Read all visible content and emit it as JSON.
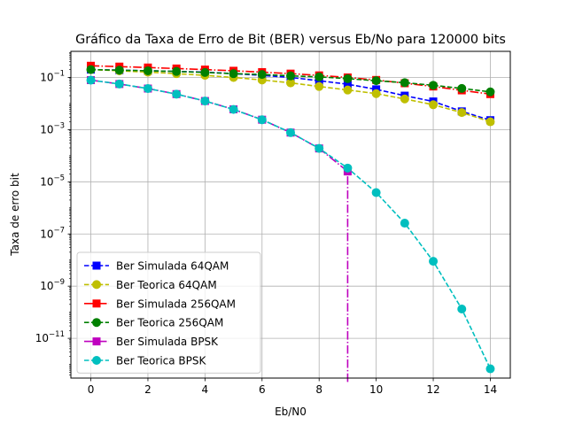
{
  "chart_data": {
    "type": "line",
    "title": "Gráfico da Taxa de Erro de Bit (BER) versus Eb/No para 120000 bits",
    "xlabel": "Eb/N0",
    "ylabel": "Taxa de erro bit",
    "xlim": [
      -0.7,
      14.7
    ],
    "ylim": [
      3e-13,
      1
    ],
    "yscale": "log",
    "grid": true,
    "legend_position": "lower-left",
    "x_ticks": [
      0,
      2,
      4,
      6,
      8,
      10,
      12,
      14
    ],
    "y_ticks": [
      {
        "value": 0.1,
        "base": "10",
        "exp": "−1"
      },
      {
        "value": 0.001,
        "base": "10",
        "exp": "−3"
      },
      {
        "value": 1e-05,
        "base": "10",
        "exp": "−5"
      },
      {
        "value": 1e-07,
        "base": "10",
        "exp": "−7"
      },
      {
        "value": 1e-09,
        "base": "10",
        "exp": "−9"
      },
      {
        "value": 1e-11,
        "base": "10",
        "exp": "−11"
      }
    ],
    "x": [
      0,
      1,
      2,
      3,
      4,
      5,
      6,
      7,
      8,
      9,
      10,
      11,
      12,
      13,
      14
    ],
    "series": [
      {
        "name": "Ber Simulada 64QAM",
        "color": "#0000ff",
        "marker": "square",
        "dash": "dashed",
        "values": [
          0.2,
          0.19,
          0.18,
          0.17,
          0.16,
          0.14,
          0.12,
          0.1,
          0.075,
          0.055,
          0.035,
          0.02,
          0.012,
          0.005,
          0.0023
        ]
      },
      {
        "name": "Ber Teorica 64QAM",
        "color": "#bfbf00",
        "marker": "circle",
        "dash": "dashed",
        "values": [
          0.2,
          0.18,
          0.16,
          0.14,
          0.12,
          0.1,
          0.08,
          0.062,
          0.045,
          0.033,
          0.024,
          0.015,
          0.009,
          0.0045,
          0.002
        ]
      },
      {
        "name": "Ber Simulada 256QAM",
        "color": "#ff0000",
        "marker": "square",
        "dash": "dashdot",
        "values": [
          0.28,
          0.26,
          0.24,
          0.22,
          0.2,
          0.18,
          0.16,
          0.14,
          0.12,
          0.1,
          0.08,
          0.06,
          0.045,
          0.032,
          0.023
        ]
      },
      {
        "name": "Ber Teorica 256QAM",
        "color": "#008000",
        "marker": "circle",
        "dash": "dashed",
        "values": [
          0.2,
          0.19,
          0.18,
          0.17,
          0.155,
          0.14,
          0.13,
          0.115,
          0.105,
          0.09,
          0.075,
          0.063,
          0.05,
          0.038,
          0.028
        ]
      },
      {
        "name": "Ber Simulada BPSK",
        "color": "#bf00bf",
        "marker": "square",
        "dash": "dashdot",
        "values": [
          0.079,
          0.056,
          0.0375,
          0.023,
          0.0125,
          0.006,
          0.0024,
          0.00077,
          0.00019,
          2.5e-05,
          null,
          null,
          null,
          null,
          null
        ],
        "drop_to_zero_at": 9
      },
      {
        "name": "Ber Teorica BPSK",
        "color": "#00bfbf",
        "marker": "circle",
        "dash": "dashed",
        "values": [
          0.0786,
          0.0563,
          0.0375,
          0.0229,
          0.0125,
          0.00595,
          0.00239,
          0.000773,
          0.000191,
          3.36e-05,
          3.87e-06,
          2.6e-07,
          9e-09,
          1.33e-10,
          6.8e-13
        ]
      }
    ]
  }
}
